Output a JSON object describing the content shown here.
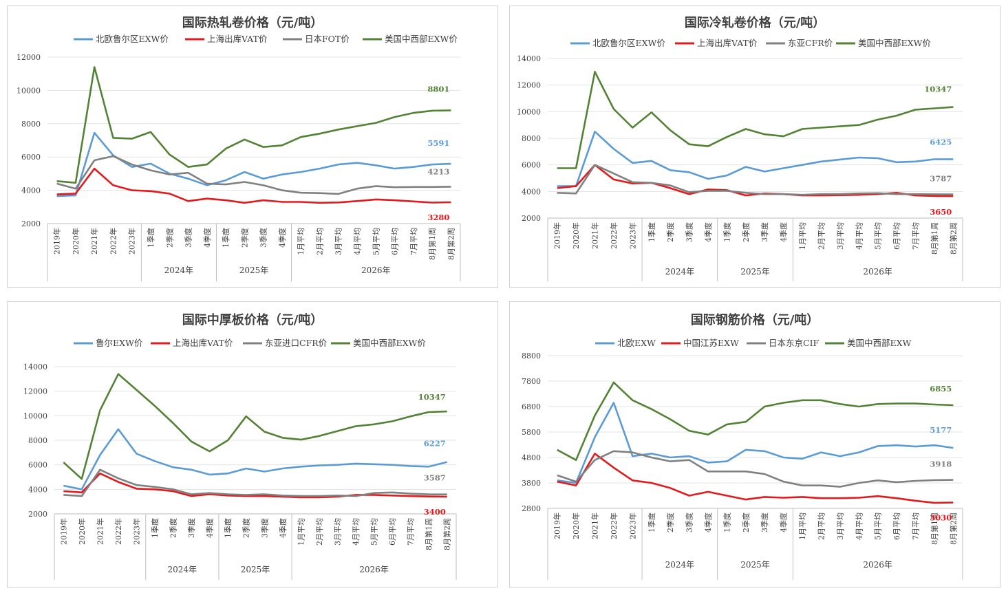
{
  "colors": {
    "blue": "#5b9bd5",
    "red": "#e31a1c",
    "gray": "#808080",
    "green": "#548235"
  },
  "charts": [
    {
      "title": "国际热轧卷价格（元/吨）",
      "legend": [
        "北欧鲁尔区EXW价",
        "上海出库VAT价",
        "日本FOT价",
        "美国中西部EXW价"
      ],
      "y_ticks": [
        "12000",
        "10000",
        "8000",
        "6000",
        "4000",
        "2000"
      ],
      "categories": [
        "2019年",
        "2020年",
        "2021年",
        "2022年",
        "2023年",
        "1季度",
        "2季度",
        "3季度",
        "4季度",
        "1季度",
        "2季度",
        "3季度",
        "4季度",
        "1月平均",
        "2月平均",
        "3月平均",
        "4月平均",
        "5月平均",
        "6月平均",
        "7月平均",
        "8月第1周",
        "8月第2周"
      ],
      "groups": [
        "2024年",
        "2025年",
        "2026年"
      ],
      "end_labels": [
        "5591",
        "3280",
        "4213",
        "8801"
      ]
    },
    {
      "title": "国际冷轧卷价格（元/吨）",
      "legend": [
        "北欧鲁尔区EXW价",
        "上海出库VAT价",
        "东亚CFR价",
        "美国中西部EXW价"
      ],
      "y_ticks": [
        "14000",
        "12000",
        "10000",
        "8000",
        "6000",
        "4000",
        "2000"
      ],
      "categories": [
        "2019年",
        "2020年",
        "2021年",
        "2022年",
        "2023年",
        "1季度",
        "2季度",
        "3季度",
        "4季度",
        "1季度",
        "2季度",
        "3季度",
        "4季度",
        "1月平均",
        "2月平均",
        "3月平均",
        "4月平均",
        "5月平均",
        "6月平均",
        "7月平均",
        "8月第1周",
        "8月第2周"
      ],
      "groups": [
        "2024年",
        "2025年",
        "2026年"
      ],
      "end_labels": [
        "6425",
        "3650",
        "3787",
        "10347"
      ]
    },
    {
      "title": "国际中厚板价格（元/吨）",
      "legend": [
        "鲁尔EXW价",
        "上海出库VAT价",
        "东亚进口CFR价",
        "美国中西部EXW价"
      ],
      "y_ticks": [
        "14000",
        "12000",
        "10000",
        "8000",
        "6000",
        "4000",
        "2000"
      ],
      "categories": [
        "2019年",
        "2020年",
        "2021年",
        "2022年",
        "2023年",
        "1季度",
        "2季度",
        "3季度",
        "4季度",
        "1季度",
        "2季度",
        "3季度",
        "4季度",
        "1月平均",
        "2月平均",
        "3月平均",
        "4月平均",
        "5月平均",
        "6月平均",
        "7月平均",
        "8月第1周",
        "8月第2周"
      ],
      "groups": [
        "2024年",
        "2025年",
        "2026年"
      ],
      "end_labels": [
        "6227",
        "3400",
        "3587",
        "10347"
      ]
    },
    {
      "title": "国际钢筋价格（元/吨）",
      "legend": [
        "北欧EXW",
        "中国江苏EXW",
        "日本东京CIF",
        "美国中西部EXW"
      ],
      "y_ticks": [
        "8800",
        "7800",
        "6800",
        "5800",
        "4800",
        "3800",
        "2800"
      ],
      "categories": [
        "2019年",
        "2020年",
        "2021年",
        "2022年",
        "2023年",
        "1季度",
        "2季度",
        "3季度",
        "4季度",
        "1季度",
        "2季度",
        "3季度",
        "4季度",
        "1月平均",
        "2月平均",
        "3月平均",
        "4月平均",
        "5月平均",
        "6月平均",
        "7月平均",
        "8月第1周",
        "8月第2周"
      ],
      "groups": [
        "2024年",
        "2025年",
        "2026年"
      ],
      "end_labels": [
        "5177",
        "3030",
        "3918",
        "6855"
      ]
    }
  ],
  "chart_data": [
    {
      "type": "line",
      "title": "国际热轧卷价格（元/吨）",
      "ylim": [
        2000,
        12000
      ],
      "categories": [
        "2019年",
        "2020年",
        "2021年",
        "2022年",
        "2023年",
        "2024年 1季度",
        "2024年 2季度",
        "2024年 3季度",
        "2024年 4季度",
        "2025年 1季度",
        "2025年 2季度",
        "2025年 3季度",
        "2025年 4季度",
        "2026年 1月平均",
        "2026年 2月平均",
        "2026年 3月平均",
        "2026年 4月平均",
        "2026年 5月平均",
        "2026年 6月平均",
        "2026年 7月平均",
        "2026年 8月第1周",
        "2026年 8月第2周"
      ],
      "series": [
        {
          "name": "北欧鲁尔区EXW价",
          "color": "#5b9bd5",
          "values": [
            3650,
            3700,
            7450,
            6100,
            5400,
            5600,
            5000,
            4700,
            4300,
            4600,
            5100,
            4700,
            4950,
            5100,
            5300,
            5550,
            5650,
            5500,
            5300,
            5400,
            5550,
            5591
          ]
        },
        {
          "name": "上海出库VAT价",
          "color": "#e31a1c",
          "values": [
            3750,
            3800,
            5300,
            4300,
            4000,
            3950,
            3800,
            3350,
            3500,
            3400,
            3250,
            3400,
            3300,
            3300,
            3250,
            3270,
            3350,
            3450,
            3400,
            3330,
            3260,
            3280
          ]
        },
        {
          "name": "日本FOT价",
          "color": "#808080",
          "values": [
            4400,
            4100,
            5800,
            6050,
            5550,
            5200,
            4950,
            5050,
            4400,
            4350,
            4500,
            4300,
            4000,
            3850,
            3830,
            3780,
            4100,
            4250,
            4180,
            4200,
            4200,
            4213
          ]
        },
        {
          "name": "美国中西部EXW价",
          "color": "#548235",
          "values": [
            4550,
            4450,
            11400,
            7150,
            7100,
            7500,
            6150,
            5400,
            5550,
            6500,
            7050,
            6600,
            6700,
            7200,
            7400,
            7650,
            7850,
            8050,
            8400,
            8650,
            8780,
            8801
          ]
        }
      ]
    },
    {
      "type": "line",
      "title": "国际冷轧卷价格（元/吨）",
      "ylim": [
        2000,
        14000
      ],
      "categories": [
        "2019年",
        "2020年",
        "2021年",
        "2022年",
        "2023年",
        "2024年 1季度",
        "2024年 2季度",
        "2024年 3季度",
        "2024年 4季度",
        "2025年 1季度",
        "2025年 2季度",
        "2025年 3季度",
        "2025年 4季度",
        "2026年 1月平均",
        "2026年 2月平均",
        "2026年 3月平均",
        "2026年 4月平均",
        "2026年 5月平均",
        "2026年 6月平均",
        "2026年 7月平均",
        "2026年 8月第1周",
        "2026年 8月第2周"
      ],
      "series": [
        {
          "name": "北欧鲁尔区EXW价",
          "color": "#5b9bd5",
          "values": [
            4400,
            4400,
            8500,
            7200,
            6150,
            6300,
            5600,
            5450,
            4950,
            5200,
            5850,
            5500,
            5750,
            6000,
            6250,
            6400,
            6550,
            6500,
            6200,
            6250,
            6420,
            6425
          ]
        },
        {
          "name": "上海出库VAT价",
          "color": "#e31a1c",
          "values": [
            4250,
            4400,
            6000,
            4900,
            4600,
            4650,
            4250,
            3800,
            4150,
            4100,
            3700,
            3850,
            3800,
            3700,
            3700,
            3720,
            3750,
            3800,
            3900,
            3700,
            3660,
            3650
          ]
        },
        {
          "name": "东亚CFR价",
          "color": "#808080",
          "values": [
            3900,
            3850,
            6000,
            5350,
            4700,
            4650,
            4450,
            3950,
            4050,
            4050,
            3900,
            3800,
            3800,
            3750,
            3800,
            3800,
            3850,
            3870,
            3800,
            3800,
            3790,
            3787
          ]
        },
        {
          "name": "美国中西部EXW价",
          "color": "#548235",
          "values": [
            5750,
            5750,
            13000,
            10200,
            8800,
            9950,
            8600,
            7550,
            7400,
            8100,
            8700,
            8300,
            8150,
            8700,
            8800,
            8900,
            9000,
            9400,
            9700,
            10150,
            10250,
            10347
          ]
        }
      ]
    },
    {
      "type": "line",
      "title": "国际中厚板价格（元/吨）",
      "ylim": [
        2000,
        14000
      ],
      "categories": [
        "2019年",
        "2020年",
        "2021年",
        "2022年",
        "2023年",
        "2024年 1季度",
        "2024年 2季度",
        "2024年 3季度",
        "2024年 4季度",
        "2025年 1季度",
        "2025年 2季度",
        "2025年 3季度",
        "2025年 4季度",
        "2026年 1月平均",
        "2026年 2月平均",
        "2026年 3月平均",
        "2026年 4月平均",
        "2026年 5月平均",
        "2026年 6月平均",
        "2026年 7月平均",
        "2026年 8月第1周",
        "2026年 8月第2周"
      ],
      "series": [
        {
          "name": "鲁尔EXW价",
          "color": "#5b9bd5",
          "values": [
            4300,
            4000,
            6800,
            8900,
            6900,
            6300,
            5800,
            5600,
            5200,
            5300,
            5700,
            5450,
            5700,
            5850,
            5950,
            6000,
            6100,
            6050,
            6000,
            5900,
            5850,
            6227
          ]
        },
        {
          "name": "上海出库VAT价",
          "color": "#e31a1c",
          "values": [
            3850,
            3750,
            5300,
            4600,
            4050,
            4000,
            3850,
            3450,
            3600,
            3500,
            3450,
            3450,
            3400,
            3350,
            3350,
            3400,
            3550,
            3550,
            3500,
            3450,
            3420,
            3400
          ]
        },
        {
          "name": "东亚进口CFR价",
          "color": "#808080",
          "values": [
            3550,
            3450,
            5600,
            4900,
            4350,
            4200,
            4000,
            3600,
            3700,
            3600,
            3550,
            3600,
            3500,
            3450,
            3450,
            3500,
            3450,
            3700,
            3750,
            3650,
            3590,
            3587
          ]
        },
        {
          "name": "美国中西部EXW价",
          "color": "#548235",
          "values": [
            6200,
            4850,
            10450,
            13400,
            12100,
            10800,
            9400,
            7900,
            7100,
            8000,
            9950,
            8700,
            8200,
            8050,
            8350,
            8750,
            9150,
            9300,
            9550,
            9950,
            10300,
            10347
          ]
        }
      ]
    },
    {
      "type": "line",
      "title": "国际钢筋价格（元/吨）",
      "ylim": [
        2800,
        8800
      ],
      "categories": [
        "2019年",
        "2020年",
        "2021年",
        "2022年",
        "2023年",
        "2024年 1季度",
        "2024年 2季度",
        "2024年 3季度",
        "2024年 4季度",
        "2025年 1季度",
        "2025年 2季度",
        "2025年 3季度",
        "2025年 4季度",
        "2026年 1月平均",
        "2026年 2月平均",
        "2026年 3月平均",
        "2026年 4月平均",
        "2026年 5月平均",
        "2026年 6月平均",
        "2026年 7月平均",
        "2026年 8月第1周",
        "2026年 8月第2周"
      ],
      "series": [
        {
          "name": "北欧EXW",
          "color": "#5b9bd5",
          "values": [
            3900,
            3800,
            5600,
            6950,
            4850,
            4950,
            4800,
            4850,
            4600,
            4650,
            5100,
            5050,
            4800,
            4750,
            5000,
            4850,
            5000,
            5250,
            5280,
            5230,
            5280,
            5177
          ]
        },
        {
          "name": "中国江苏EXW",
          "color": "#e31a1c",
          "values": [
            3850,
            3700,
            4950,
            4400,
            3900,
            3800,
            3600,
            3300,
            3450,
            3300,
            3150,
            3250,
            3220,
            3250,
            3200,
            3200,
            3220,
            3280,
            3200,
            3100,
            3020,
            3030
          ]
        },
        {
          "name": "日本东京CIF",
          "color": "#808080",
          "values": [
            4100,
            3850,
            4700,
            5050,
            5000,
            4800,
            4650,
            4700,
            4250,
            4250,
            4250,
            4150,
            3850,
            3700,
            3700,
            3650,
            3800,
            3900,
            3830,
            3880,
            3910,
            3918
          ]
        },
        {
          "name": "美国中西部EXW",
          "color": "#548235",
          "values": [
            5100,
            4700,
            6450,
            7750,
            7050,
            6700,
            6300,
            5850,
            5700,
            6100,
            6200,
            6800,
            6950,
            7050,
            7050,
            6900,
            6800,
            6900,
            6920,
            6920,
            6880,
            6855
          ]
        }
      ]
    }
  ]
}
